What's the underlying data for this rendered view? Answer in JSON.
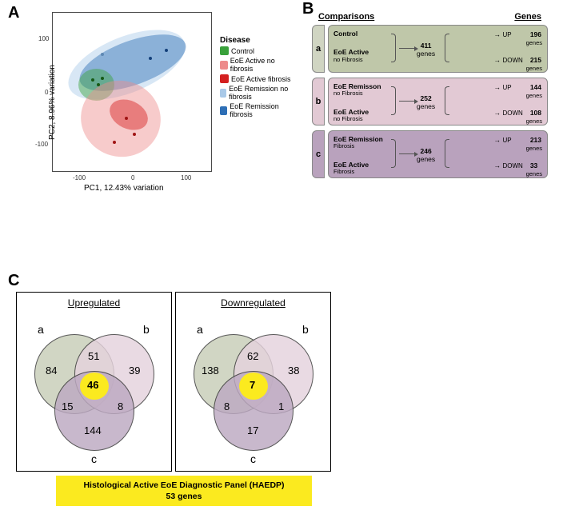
{
  "panel_letters": {
    "A": "A",
    "B": "B",
    "C": "C"
  },
  "pca": {
    "xlab": "PC1, 12.43% variation",
    "ylab": "PC2, 8.96% variation",
    "xticks": [
      "-100",
      "0",
      "100"
    ],
    "yticks": [
      "-100",
      "0",
      "100"
    ],
    "legend_title": "Disease",
    "legend": [
      {
        "label": "Control",
        "color": "#39a13b"
      },
      {
        "label": "EoE Active no fibrosis",
        "color": "#ed8b8b"
      },
      {
        "label": "EoE Active fibrosis",
        "color": "#d42020"
      },
      {
        "label": "EoE Remission no fibrosis",
        "color": "#a9c9e8"
      },
      {
        "label": "EoE Remission fibrosis",
        "color": "#2e6fb6"
      }
    ],
    "plot_bg": "#ffffff",
    "border_color": "#4a4a4a"
  },
  "comparisons": {
    "header_left": "Comparisons",
    "header_right": "Genes",
    "rows": [
      {
        "id": "a",
        "tab_color": "#d0d5c2",
        "box_color": "#bfc7a9",
        "group1": "Control",
        "group1_sub": "",
        "group2": "EoE Active",
        "group2_sub": "no Fibrosis",
        "total": "411",
        "up": "196",
        "down": "215"
      },
      {
        "id": "b",
        "tab_color": "#e2c9d4",
        "box_color": "#e2c9d4",
        "group1": "EoE Remisson",
        "group1_sub": "no Fibrosis",
        "group2": "EoE Active",
        "group2_sub": "no Fibrosis",
        "total": "252",
        "up": "144",
        "down": "108"
      },
      {
        "id": "c",
        "tab_color": "#b9a2bd",
        "box_color": "#b9a2bd",
        "group1": "EoE Remission",
        "group1_sub": "Fibrosis",
        "group2": "EoE Active",
        "group2_sub": "Fibrosis",
        "total": "246",
        "up": "213",
        "down": "33"
      }
    ],
    "genes_word": "genes",
    "up_label": "UP",
    "down_label": "DOWN"
  },
  "venn": {
    "titles": {
      "left": "Upregulated",
      "right": "Downregulated"
    },
    "labels": {
      "a": "a",
      "b": "b",
      "c": "c"
    },
    "colors": {
      "a": "#c8ceb8",
      "b": "#e5d3dd",
      "c": "#bda9c2",
      "highlight": "#fbea1f"
    },
    "up": {
      "only_a": "84",
      "only_b": "39",
      "only_c": "144",
      "ab": "51",
      "ac": "15",
      "bc": "8",
      "abc": "46"
    },
    "down": {
      "only_a": "138",
      "only_b": "38",
      "only_c": "17",
      "ab": "62",
      "ac": "8",
      "bc": "1",
      "abc": "7"
    },
    "bar_title": "Histological Active EoE Diagnostic Panel (HAEDP)",
    "bar_sub": "53 genes"
  }
}
